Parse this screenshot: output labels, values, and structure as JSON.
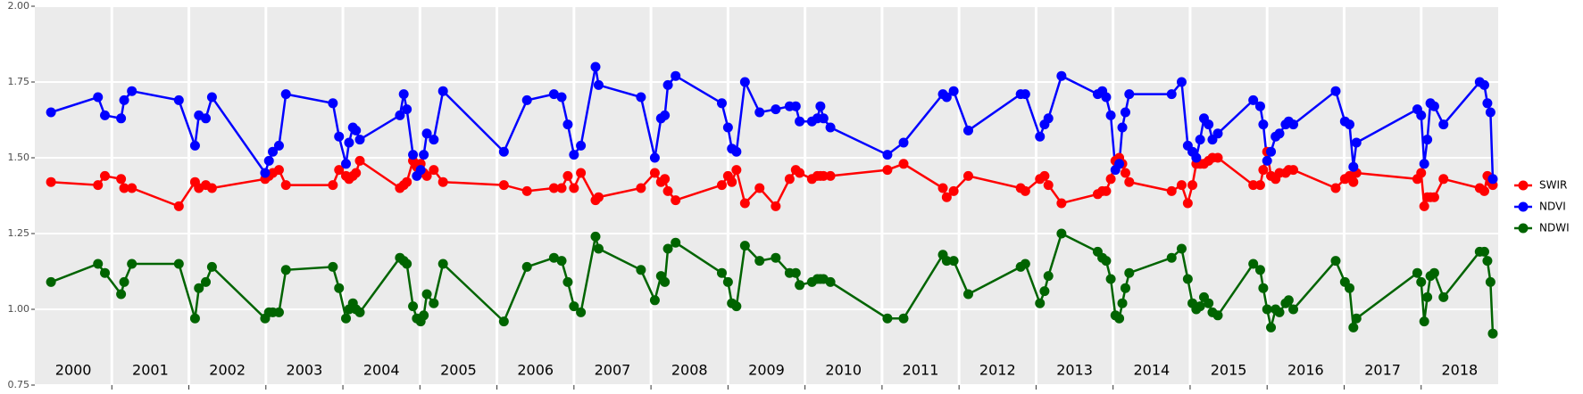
{
  "chart_data": {
    "type": "line",
    "x": [
      2000.21,
      2000.82,
      2000.91,
      2001.12,
      2001.16,
      2001.26,
      2001.87,
      2002.08,
      2002.13,
      2002.22,
      2002.3,
      2002.99,
      2003.04,
      2003.09,
      2003.17,
      2003.26,
      2003.87,
      2003.95,
      2004.04,
      2004.08,
      2004.13,
      2004.17,
      2004.22,
      2004.74,
      2004.79,
      2004.83,
      2004.91,
      2004.96,
      2005.01,
      2005.05,
      2005.09,
      2005.18,
      2005.3,
      2006.09,
      2006.39,
      2006.74,
      2006.84,
      2006.92,
      2007.0,
      2007.09,
      2007.28,
      2007.32,
      2007.87,
      2008.05,
      2008.13,
      2008.18,
      2008.22,
      2008.32,
      2008.92,
      2009.0,
      2009.05,
      2009.11,
      2009.22,
      2009.41,
      2009.62,
      2009.8,
      2009.88,
      2009.93,
      2010.09,
      2010.16,
      2010.2,
      2010.24,
      2010.33,
      2011.07,
      2011.28,
      2011.79,
      2011.84,
      2011.93,
      2012.12,
      2012.8,
      2012.86,
      2013.05,
      2013.11,
      2013.16,
      2013.33,
      2013.8,
      2013.86,
      2013.91,
      2013.97,
      2014.03,
      2014.08,
      2014.12,
      2014.16,
      2014.21,
      2014.76,
      2014.89,
      2014.97,
      2015.03,
      2015.08,
      2015.13,
      2015.18,
      2015.24,
      2015.29,
      2015.36,
      2015.82,
      2015.91,
      2015.95,
      2016.0,
      2016.05,
      2016.11,
      2016.16,
      2016.24,
      2016.28,
      2016.34,
      2016.89,
      2017.01,
      2017.07,
      2017.12,
      2017.16,
      2017.95,
      2018.0,
      2018.04,
      2018.08,
      2018.12,
      2018.17,
      2018.29,
      2018.76,
      2018.82,
      2018.86,
      2018.9,
      2018.93
    ],
    "series": [
      {
        "name": "SWIR",
        "color": "#ff0000",
        "values": [
          1.42,
          1.41,
          1.44,
          1.43,
          1.4,
          1.4,
          1.34,
          1.42,
          1.4,
          1.41,
          1.4,
          1.43,
          1.44,
          1.45,
          1.46,
          1.41,
          1.41,
          1.46,
          1.44,
          1.43,
          1.44,
          1.45,
          1.49,
          1.4,
          1.41,
          1.42,
          1.49,
          1.47,
          1.48,
          1.45,
          1.44,
          1.46,
          1.42,
          1.41,
          1.39,
          1.4,
          1.4,
          1.44,
          1.4,
          1.45,
          1.36,
          1.37,
          1.4,
          1.45,
          1.42,
          1.43,
          1.39,
          1.36,
          1.41,
          1.44,
          1.42,
          1.46,
          1.35,
          1.4,
          1.34,
          1.43,
          1.46,
          1.45,
          1.43,
          1.44,
          1.44,
          1.44,
          1.44,
          1.46,
          1.48,
          1.4,
          1.37,
          1.39,
          1.44,
          1.4,
          1.39,
          1.43,
          1.44,
          1.41,
          1.35,
          1.38,
          1.39,
          1.39,
          1.43,
          1.49,
          1.5,
          1.48,
          1.45,
          1.42,
          1.39,
          1.41,
          1.35,
          1.41,
          1.48,
          1.48,
          1.48,
          1.49,
          1.5,
          1.5,
          1.41,
          1.41,
          1.46,
          1.52,
          1.44,
          1.43,
          1.45,
          1.45,
          1.46,
          1.46,
          1.4,
          1.43,
          1.44,
          1.42,
          1.45,
          1.43,
          1.45,
          1.34,
          1.37,
          1.37,
          1.37,
          1.43,
          1.4,
          1.39,
          1.44,
          1.42,
          1.41
        ]
      },
      {
        "name": "NDVI",
        "color": "#0000ff",
        "values": [
          1.65,
          1.7,
          1.64,
          1.63,
          1.69,
          1.72,
          1.69,
          1.54,
          1.64,
          1.63,
          1.7,
          1.45,
          1.49,
          1.52,
          1.54,
          1.71,
          1.68,
          1.57,
          1.48,
          1.55,
          1.6,
          1.59,
          1.56,
          1.64,
          1.71,
          1.66,
          1.51,
          1.44,
          1.46,
          1.51,
          1.58,
          1.56,
          1.72,
          1.52,
          1.69,
          1.71,
          1.7,
          1.61,
          1.51,
          1.54,
          1.8,
          1.74,
          1.7,
          1.5,
          1.63,
          1.64,
          1.74,
          1.77,
          1.68,
          1.6,
          1.53,
          1.52,
          1.75,
          1.65,
          1.66,
          1.67,
          1.67,
          1.62,
          1.62,
          1.63,
          1.67,
          1.63,
          1.6,
          1.51,
          1.55,
          1.71,
          1.7,
          1.72,
          1.59,
          1.71,
          1.71,
          1.57,
          1.61,
          1.63,
          1.77,
          1.71,
          1.72,
          1.7,
          1.64,
          1.46,
          1.48,
          1.6,
          1.65,
          1.71,
          1.71,
          1.75,
          1.54,
          1.52,
          1.5,
          1.56,
          1.63,
          1.61,
          1.56,
          1.58,
          1.69,
          1.67,
          1.61,
          1.49,
          1.52,
          1.57,
          1.58,
          1.61,
          1.62,
          1.61,
          1.72,
          1.62,
          1.61,
          1.47,
          1.55,
          1.66,
          1.64,
          1.48,
          1.56,
          1.68,
          1.67,
          1.61,
          1.75,
          1.74,
          1.68,
          1.65,
          1.43
        ]
      },
      {
        "name": "NDWI",
        "color": "#006400",
        "values": [
          1.09,
          1.15,
          1.12,
          1.05,
          1.09,
          1.15,
          1.15,
          0.97,
          1.07,
          1.09,
          1.14,
          0.97,
          0.99,
          0.99,
          0.99,
          1.13,
          1.14,
          1.07,
          0.97,
          1.0,
          1.02,
          1.0,
          0.99,
          1.17,
          1.16,
          1.15,
          1.01,
          0.97,
          0.96,
          0.98,
          1.05,
          1.02,
          1.15,
          0.96,
          1.14,
          1.17,
          1.16,
          1.09,
          1.01,
          0.99,
          1.24,
          1.2,
          1.13,
          1.03,
          1.11,
          1.09,
          1.2,
          1.22,
          1.12,
          1.09,
          1.02,
          1.01,
          1.21,
          1.16,
          1.17,
          1.12,
          1.12,
          1.08,
          1.09,
          1.1,
          1.1,
          1.1,
          1.09,
          0.97,
          0.97,
          1.18,
          1.16,
          1.16,
          1.05,
          1.14,
          1.15,
          1.02,
          1.06,
          1.11,
          1.25,
          1.19,
          1.17,
          1.16,
          1.1,
          0.98,
          0.97,
          1.02,
          1.07,
          1.12,
          1.17,
          1.2,
          1.1,
          1.02,
          1.0,
          1.01,
          1.04,
          1.02,
          0.99,
          0.98,
          1.15,
          1.13,
          1.07,
          1.0,
          0.94,
          1.0,
          0.99,
          1.02,
          1.03,
          1.0,
          1.16,
          1.09,
          1.07,
          0.94,
          0.97,
          1.12,
          1.09,
          0.96,
          1.04,
          1.11,
          1.12,
          1.04,
          1.19,
          1.19,
          1.16,
          1.09,
          0.92
        ]
      }
    ],
    "xlim": [
      2000,
      2019
    ],
    "xticks": [
      2001,
      2002,
      2003,
      2004,
      2005,
      2006,
      2007,
      2008,
      2009,
      2010,
      2011,
      2012,
      2013,
      2014,
      2015,
      2016,
      2017,
      2018
    ],
    "year_labels": [
      "2000",
      "2001",
      "2002",
      "2003",
      "2004",
      "2005",
      "2006",
      "2007",
      "2008",
      "2009",
      "2010",
      "2011",
      "2012",
      "2013",
      "2014",
      "2015",
      "2016",
      "2017",
      "2018"
    ],
    "ylim": [
      0.75,
      2.0
    ],
    "yticks": [
      {
        "value": 0.75,
        "label": "0.75"
      },
      {
        "value": 1,
        "label": "1.00"
      },
      {
        "value": 1.25,
        "label": "1.25"
      },
      {
        "value": 1.5,
        "label": "1.50"
      },
      {
        "value": 1.75,
        "label": "1.75"
      },
      {
        "value": 2,
        "label": "2.00"
      }
    ],
    "grid": true,
    "legend": "right"
  }
}
